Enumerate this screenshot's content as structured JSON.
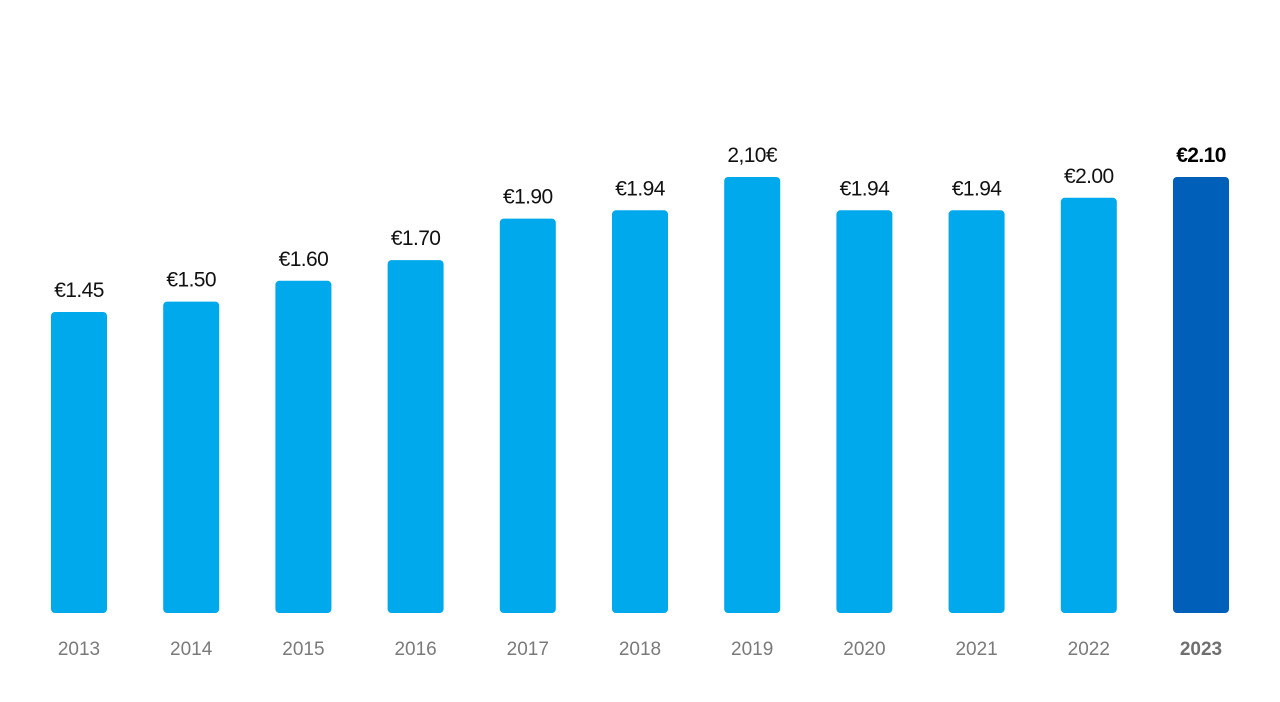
{
  "colors": {
    "bar": "#00a9eb",
    "bar_highlight": "#005fb8",
    "background": "#ffffff"
  },
  "chart_data": {
    "type": "bar",
    "categories": [
      "2013",
      "2014",
      "2015",
      "2016",
      "2017",
      "2018",
      "2019",
      "2020",
      "2021",
      "2022",
      "2023"
    ],
    "values": [
      1.45,
      1.5,
      1.6,
      1.7,
      1.9,
      1.94,
      2.1,
      1.94,
      1.94,
      2.0,
      2.1
    ],
    "data_labels": [
      "€1.45",
      "€1.50",
      "€1.60",
      "€1.70",
      "€1.90",
      "€1.94",
      "2,10€",
      "€1.94",
      "€1.94",
      "€2.00",
      "€2.10"
    ],
    "highlight_index": 10,
    "title": "",
    "xlabel": "",
    "ylabel": "",
    "ylim": [
      0,
      2.1
    ],
    "grid": false,
    "legend": "none"
  }
}
